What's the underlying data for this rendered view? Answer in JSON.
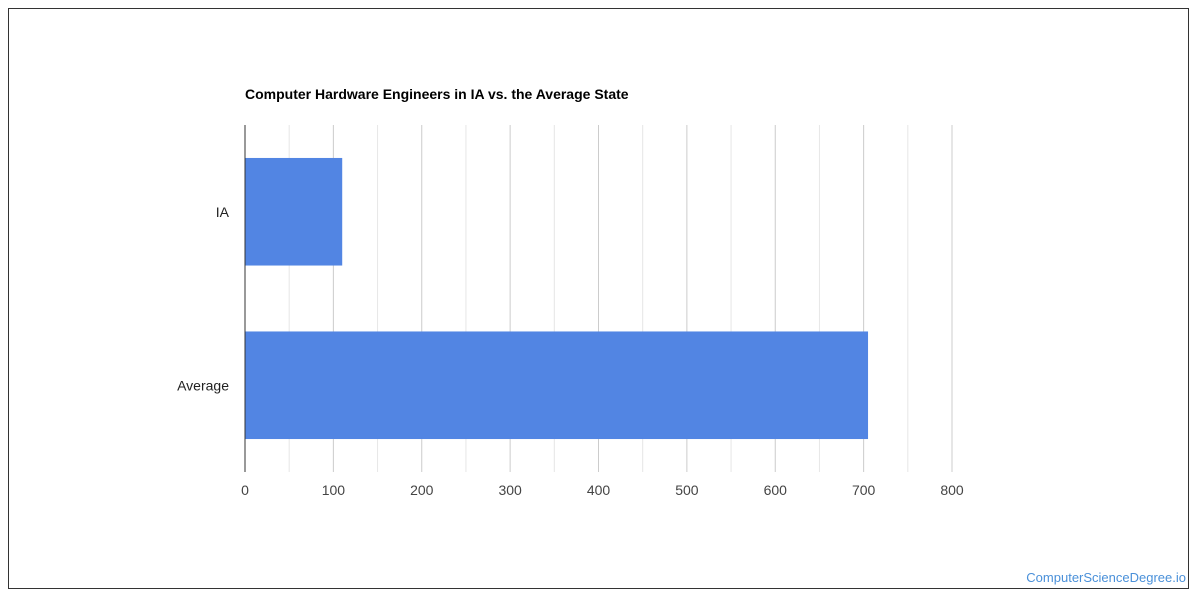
{
  "chart_data": {
    "type": "bar",
    "orientation": "horizontal",
    "title": "Computer Hardware Engineers in IA vs. the Average State",
    "categories": [
      "IA",
      "Average"
    ],
    "values": [
      110,
      705
    ],
    "xlim": [
      0,
      800
    ],
    "x_ticks": [
      0,
      100,
      200,
      300,
      400,
      500,
      600,
      700,
      800
    ],
    "grid": true,
    "bar_color": "#5285e3",
    "legend": "none"
  },
  "watermark": "ComputerScienceDegree.io"
}
